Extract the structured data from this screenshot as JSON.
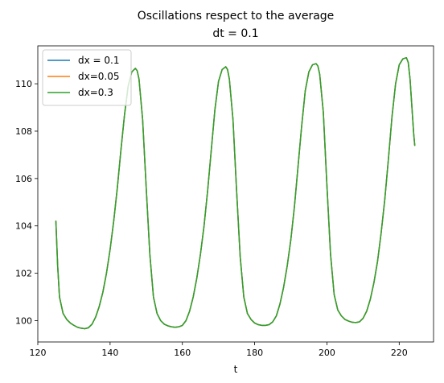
{
  "chart_data": {
    "type": "line",
    "title": [
      "Oscillations respect to the average",
      "dt = 0.1"
    ],
    "xlabel": "t",
    "ylabel": "",
    "xlim": [
      120,
      229.5
    ],
    "ylim": [
      99.1,
      111.6
    ],
    "xticks": [
      120,
      140,
      160,
      180,
      200,
      220
    ],
    "yticks": [
      100,
      102,
      104,
      106,
      108,
      110
    ],
    "grid": false,
    "legend_position": "top-left",
    "series": [
      {
        "name": "dx = 0.1",
        "color": "#1f77b4",
        "x": [
          125.0,
          125.5,
          126.0,
          127.0,
          128.0,
          129.0,
          130.0,
          131.0,
          132.0,
          133.0,
          134.0,
          135.0,
          136.0,
          137.0,
          138.0,
          139.0,
          140.0,
          141.0,
          142.0,
          143.0,
          144.0,
          145.0,
          146.0,
          147.0,
          147.5,
          148.0,
          149.0,
          150.0,
          151.0,
          152.0,
          153.0,
          154.0,
          155.0,
          156.0,
          157.0,
          158.0,
          159.0,
          160.0,
          161.0,
          162.0,
          163.0,
          164.0,
          165.0,
          166.0,
          167.0,
          168.0,
          169.0,
          170.0,
          171.0,
          172.0,
          172.5,
          173.0,
          174.0,
          175.0,
          176.0,
          177.0,
          178.0,
          179.0,
          180.0,
          181.0,
          182.0,
          183.0,
          184.0,
          185.0,
          186.0,
          187.0,
          188.0,
          189.0,
          190.0,
          191.0,
          192.0,
          193.0,
          194.0,
          195.0,
          196.0,
          197.0,
          197.5,
          198.0,
          199.0,
          200.0,
          201.0,
          202.0,
          203.0,
          204.0,
          205.0,
          206.0,
          207.0,
          208.0,
          209.0,
          210.0,
          211.0,
          212.0,
          213.0,
          214.0,
          215.0,
          216.0,
          217.0,
          218.0,
          219.0,
          220.0,
          221.0,
          222.0,
          222.5,
          223.0,
          224.0,
          224.3
        ],
        "y": [
          104.2,
          102.3,
          101.0,
          100.3,
          100.05,
          99.9,
          99.8,
          99.72,
          99.68,
          99.66,
          99.7,
          99.85,
          100.15,
          100.6,
          101.2,
          102.0,
          103.0,
          104.2,
          105.6,
          107.2,
          108.7,
          109.9,
          110.5,
          110.65,
          110.55,
          110.2,
          108.5,
          105.6,
          102.8,
          101.0,
          100.3,
          100.0,
          99.85,
          99.78,
          99.74,
          99.72,
          99.74,
          99.8,
          100.0,
          100.4,
          101.0,
          101.8,
          102.8,
          104.0,
          105.5,
          107.2,
          108.9,
          110.1,
          110.6,
          110.72,
          110.6,
          110.2,
          108.5,
          105.5,
          102.7,
          101.0,
          100.3,
          100.05,
          99.9,
          99.83,
          99.8,
          99.8,
          99.83,
          99.95,
          100.2,
          100.7,
          101.4,
          102.3,
          103.4,
          104.8,
          106.5,
          108.2,
          109.7,
          110.5,
          110.8,
          110.85,
          110.75,
          110.4,
          108.8,
          105.7,
          102.8,
          101.1,
          100.45,
          100.2,
          100.05,
          99.98,
          99.93,
          99.92,
          99.95,
          100.1,
          100.4,
          100.9,
          101.6,
          102.5,
          103.7,
          105.1,
          106.8,
          108.6,
          110.0,
          110.8,
          111.05,
          111.1,
          110.9,
          110.2,
          107.9,
          107.4
        ]
      },
      {
        "name": "dx=0.05",
        "color": "#ff7f0e",
        "x": [
          125.0,
          125.5,
          126.0,
          127.0,
          128.0,
          129.0,
          130.0,
          131.0,
          132.0,
          133.0,
          134.0,
          135.0,
          136.0,
          137.0,
          138.0,
          139.0,
          140.0,
          141.0,
          142.0,
          143.0,
          144.0,
          145.0,
          146.0,
          147.0,
          147.5,
          148.0,
          149.0,
          150.0,
          151.0,
          152.0,
          153.0,
          154.0,
          155.0,
          156.0,
          157.0,
          158.0,
          159.0,
          160.0,
          161.0,
          162.0,
          163.0,
          164.0,
          165.0,
          166.0,
          167.0,
          168.0,
          169.0,
          170.0,
          171.0,
          172.0,
          172.5,
          173.0,
          174.0,
          175.0,
          176.0,
          177.0,
          178.0,
          179.0,
          180.0,
          181.0,
          182.0,
          183.0,
          184.0,
          185.0,
          186.0,
          187.0,
          188.0,
          189.0,
          190.0,
          191.0,
          192.0,
          193.0,
          194.0,
          195.0,
          196.0,
          197.0,
          197.5,
          198.0,
          199.0,
          200.0,
          201.0,
          202.0,
          203.0,
          204.0,
          205.0,
          206.0,
          207.0,
          208.0,
          209.0,
          210.0,
          211.0,
          212.0,
          213.0,
          214.0,
          215.0,
          216.0,
          217.0,
          218.0,
          219.0,
          220.0,
          221.0,
          222.0,
          222.5,
          223.0,
          224.0,
          224.3
        ],
        "y": [
          104.2,
          102.3,
          101.0,
          100.3,
          100.05,
          99.9,
          99.8,
          99.72,
          99.68,
          99.66,
          99.7,
          99.85,
          100.15,
          100.6,
          101.2,
          102.0,
          103.0,
          104.2,
          105.6,
          107.2,
          108.7,
          109.9,
          110.5,
          110.65,
          110.55,
          110.2,
          108.5,
          105.6,
          102.8,
          101.0,
          100.3,
          100.0,
          99.85,
          99.78,
          99.74,
          99.72,
          99.74,
          99.8,
          100.0,
          100.4,
          101.0,
          101.8,
          102.8,
          104.0,
          105.5,
          107.2,
          108.9,
          110.1,
          110.6,
          110.72,
          110.6,
          110.2,
          108.5,
          105.5,
          102.7,
          101.0,
          100.3,
          100.05,
          99.9,
          99.83,
          99.8,
          99.8,
          99.83,
          99.95,
          100.2,
          100.7,
          101.4,
          102.3,
          103.4,
          104.8,
          106.5,
          108.2,
          109.7,
          110.5,
          110.8,
          110.85,
          110.75,
          110.4,
          108.8,
          105.7,
          102.8,
          101.1,
          100.45,
          100.2,
          100.05,
          99.98,
          99.93,
          99.92,
          99.95,
          100.1,
          100.4,
          100.9,
          101.6,
          102.5,
          103.7,
          105.1,
          106.8,
          108.6,
          110.0,
          110.8,
          111.05,
          111.1,
          110.9,
          110.2,
          107.9,
          107.4
        ]
      },
      {
        "name": "dx=0.3",
        "color": "#2ca02c",
        "x": [
          125.0,
          125.5,
          126.0,
          127.0,
          128.0,
          129.0,
          130.0,
          131.0,
          132.0,
          133.0,
          134.0,
          135.0,
          136.0,
          137.0,
          138.0,
          139.0,
          140.0,
          141.0,
          142.0,
          143.0,
          144.0,
          145.0,
          146.0,
          147.0,
          147.5,
          148.0,
          149.0,
          150.0,
          151.0,
          152.0,
          153.0,
          154.0,
          155.0,
          156.0,
          157.0,
          158.0,
          159.0,
          160.0,
          161.0,
          162.0,
          163.0,
          164.0,
          165.0,
          166.0,
          167.0,
          168.0,
          169.0,
          170.0,
          171.0,
          172.0,
          172.5,
          173.0,
          174.0,
          175.0,
          176.0,
          177.0,
          178.0,
          179.0,
          180.0,
          181.0,
          182.0,
          183.0,
          184.0,
          185.0,
          186.0,
          187.0,
          188.0,
          189.0,
          190.0,
          191.0,
          192.0,
          193.0,
          194.0,
          195.0,
          196.0,
          197.0,
          197.5,
          198.0,
          199.0,
          200.0,
          201.0,
          202.0,
          203.0,
          204.0,
          205.0,
          206.0,
          207.0,
          208.0,
          209.0,
          210.0,
          211.0,
          212.0,
          213.0,
          214.0,
          215.0,
          216.0,
          217.0,
          218.0,
          219.0,
          220.0,
          221.0,
          222.0,
          222.5,
          223.0,
          224.0,
          224.3
        ],
        "y": [
          104.2,
          102.3,
          101.0,
          100.3,
          100.05,
          99.9,
          99.8,
          99.72,
          99.68,
          99.66,
          99.7,
          99.85,
          100.15,
          100.6,
          101.2,
          102.0,
          103.0,
          104.2,
          105.6,
          107.2,
          108.7,
          109.9,
          110.5,
          110.65,
          110.55,
          110.2,
          108.5,
          105.6,
          102.8,
          101.0,
          100.3,
          100.0,
          99.85,
          99.78,
          99.74,
          99.72,
          99.74,
          99.8,
          100.0,
          100.4,
          101.0,
          101.8,
          102.8,
          104.0,
          105.5,
          107.2,
          108.9,
          110.1,
          110.6,
          110.72,
          110.6,
          110.2,
          108.5,
          105.5,
          102.7,
          101.0,
          100.3,
          100.05,
          99.9,
          99.83,
          99.8,
          99.8,
          99.83,
          99.95,
          100.2,
          100.7,
          101.4,
          102.3,
          103.4,
          104.8,
          106.5,
          108.2,
          109.7,
          110.5,
          110.8,
          110.85,
          110.75,
          110.4,
          108.8,
          105.7,
          102.8,
          101.1,
          100.45,
          100.2,
          100.05,
          99.98,
          99.93,
          99.92,
          99.95,
          100.1,
          100.4,
          100.9,
          101.6,
          102.5,
          103.7,
          105.1,
          106.8,
          108.6,
          110.0,
          110.8,
          111.05,
          111.1,
          110.9,
          110.2,
          107.9,
          107.4
        ]
      }
    ]
  }
}
